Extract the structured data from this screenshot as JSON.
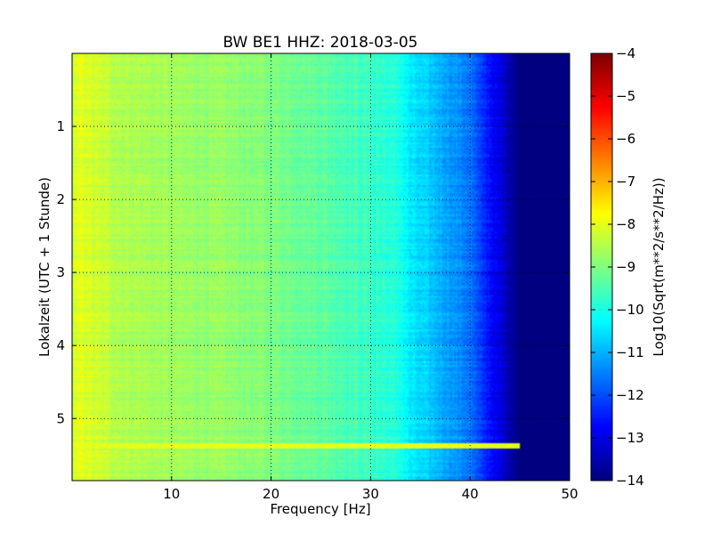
{
  "chart_data": {
    "type": "heatmap",
    "title": "BW BE1 HHZ: 2018-03-05",
    "xlabel": "Frequency [Hz]",
    "ylabel": "Lokalzeit (UTC + 1 Stunde)",
    "xlim": [
      0,
      50
    ],
    "ylim": [
      5.85,
      0
    ],
    "xticks": [
      10,
      20,
      30,
      40,
      50
    ],
    "yticks": [
      1,
      2,
      3,
      4,
      5
    ],
    "grid": true,
    "grid_style": "dotted",
    "colorbar": {
      "label": "Log10(Sqrt(m**2/s**2/Hz))",
      "colormap": "jet",
      "range": [
        -14,
        -4
      ],
      "ticks": [
        -4,
        -5,
        -6,
        -7,
        -8,
        -9,
        -10,
        -11,
        -12,
        -13,
        -14
      ]
    },
    "spectrum_profile": {
      "frequency_hz": [
        0,
        1,
        2,
        5,
        10,
        15,
        20,
        25,
        30,
        33,
        34,
        36,
        38,
        40,
        41,
        42,
        43,
        44,
        45,
        50
      ],
      "log10_amplitude": [
        -8.3,
        -8.0,
        -8.2,
        -8.5,
        -8.7,
        -8.8,
        -9.0,
        -9.3,
        -9.7,
        -10.0,
        -10.5,
        -10.8,
        -11.2,
        -11.6,
        -12.2,
        -12.6,
        -13.1,
        -13.6,
        -14.0,
        -14.0
      ]
    },
    "notable_features": [
      {
        "type": "horizontal_band",
        "time": 5.37,
        "freq_range": [
          0,
          45
        ],
        "log10_amplitude": -8.0
      }
    ]
  }
}
